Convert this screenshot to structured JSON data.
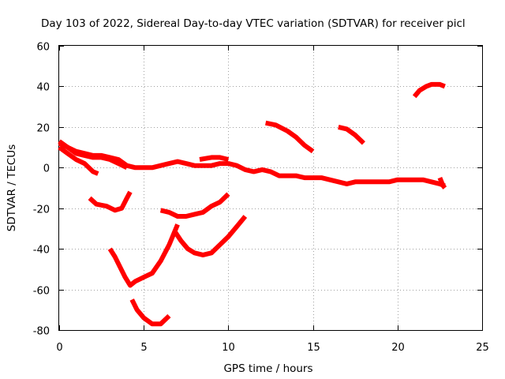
{
  "chart_data": {
    "type": "line",
    "title": "Day 103 of 2022, Sidereal Day-to-day VTEC variation (SDTVAR) for receiver picl",
    "xlabel": "GPS time / hours",
    "ylabel": "SDTVAR / TECUs",
    "xlim": [
      0,
      25
    ],
    "ylim": [
      -80,
      60
    ],
    "xticks": [
      0,
      5,
      10,
      15,
      20,
      25
    ],
    "yticks": [
      -80,
      -60,
      -40,
      -20,
      0,
      20,
      40,
      60
    ],
    "xtick_labels": [
      "0",
      "5",
      "10",
      "15",
      "20",
      "25"
    ],
    "ytick_labels": [
      "-80",
      "-60",
      "-40",
      "-20",
      "0",
      "20",
      "40",
      "60"
    ],
    "grid": true,
    "legend": "none",
    "color": "#ff0000",
    "series": [
      {
        "name": "track-main",
        "x": [
          0,
          0.5,
          1.0,
          1.5,
          2.0,
          2.5,
          3.0,
          3.5,
          4.0,
          4.5,
          5.0,
          5.5,
          6.0,
          6.5,
          7.0,
          7.5,
          8.0,
          8.5,
          9.0,
          9.5,
          10.0,
          10.5,
          11.0,
          11.5,
          12.0,
          12.5,
          13.0,
          13.5,
          14.0,
          14.5,
          15.0,
          15.5,
          16.0,
          16.5,
          17.0,
          17.5,
          18.0,
          18.5,
          19.0,
          19.5,
          20.0,
          20.5,
          21.0,
          21.5,
          22.0,
          22.5,
          22.8
        ],
        "y": [
          13,
          10,
          8,
          7,
          6,
          6,
          5,
          4,
          1,
          0,
          0,
          0,
          1,
          2,
          3,
          2,
          1,
          1,
          1,
          2,
          2,
          1,
          -1,
          -2,
          -1,
          -2,
          -4,
          -4,
          -4,
          -5,
          -5,
          -5,
          -6,
          -7,
          -8,
          -7,
          -7,
          -7,
          -7,
          -7,
          -6,
          -6,
          -6,
          -6,
          -7,
          -8,
          -9
        ]
      },
      {
        "name": "track-upper-band",
        "x": [
          0,
          0.5,
          1.0,
          1.5,
          2.0,
          2.5,
          3.0,
          3.5,
          4.0
        ],
        "y": [
          12,
          10,
          7,
          6,
          5,
          5,
          4,
          2,
          0
        ]
      },
      {
        "name": "track-lower-band",
        "x": [
          0,
          0.5,
          1.0,
          1.5,
          2.0,
          2.3
        ],
        "y": [
          10,
          7,
          4,
          2,
          -2,
          -3
        ]
      },
      {
        "name": "track-mid-lump",
        "x": [
          8.3,
          9.0,
          9.5,
          10.0
        ],
        "y": [
          4,
          5,
          5,
          4
        ]
      },
      {
        "name": "track-a",
        "x": [
          1.8,
          2.2,
          2.8,
          3.3,
          3.7,
          4.0,
          4.2
        ],
        "y": [
          -15,
          -18,
          -19,
          -21,
          -20,
          -15,
          -12
        ]
      },
      {
        "name": "track-b",
        "x": [
          3.0,
          3.3,
          3.6,
          3.9,
          4.2,
          4.5,
          5.0,
          5.5,
          6.0,
          6.5,
          7.0
        ],
        "y": [
          -40,
          -44,
          -49,
          -54,
          -58,
          -56,
          -54,
          -52,
          -46,
          -38,
          -28
        ]
      },
      {
        "name": "track-c",
        "x": [
          4.3,
          4.6,
          5.0,
          5.5,
          6.0,
          6.5
        ],
        "y": [
          -65,
          -70,
          -74,
          -77,
          -77,
          -73
        ]
      },
      {
        "name": "track-d",
        "x": [
          6.0,
          6.5,
          7.0,
          7.5,
          8.0,
          8.5,
          9.0,
          9.5,
          10.0
        ],
        "y": [
          -21,
          -22,
          -24,
          -24,
          -23,
          -22,
          -19,
          -17,
          -13
        ]
      },
      {
        "name": "track-e",
        "x": [
          6.8,
          7.2,
          7.6,
          8.0,
          8.5,
          9.0,
          9.5,
          10.0,
          10.5,
          11.0
        ],
        "y": [
          -31,
          -36,
          -40,
          -42,
          -43,
          -42,
          -38,
          -34,
          -29,
          -24
        ]
      },
      {
        "name": "track-f",
        "x": [
          12.2,
          12.8,
          13.5,
          14.0,
          14.5,
          15.0
        ],
        "y": [
          22,
          21,
          18,
          15,
          11,
          8
        ]
      },
      {
        "name": "track-g",
        "x": [
          16.5,
          17.0,
          17.5,
          18.0
        ],
        "y": [
          20,
          19,
          16,
          12
        ]
      },
      {
        "name": "track-h",
        "x": [
          21.0,
          21.3,
          21.7,
          22.0,
          22.5,
          22.8
        ],
        "y": [
          35,
          38,
          40,
          41,
          41,
          40
        ]
      },
      {
        "name": "track-tail",
        "x": [
          22.5,
          22.6,
          22.7,
          22.8
        ],
        "y": [
          -5,
          -7,
          -9,
          -10
        ]
      }
    ]
  }
}
